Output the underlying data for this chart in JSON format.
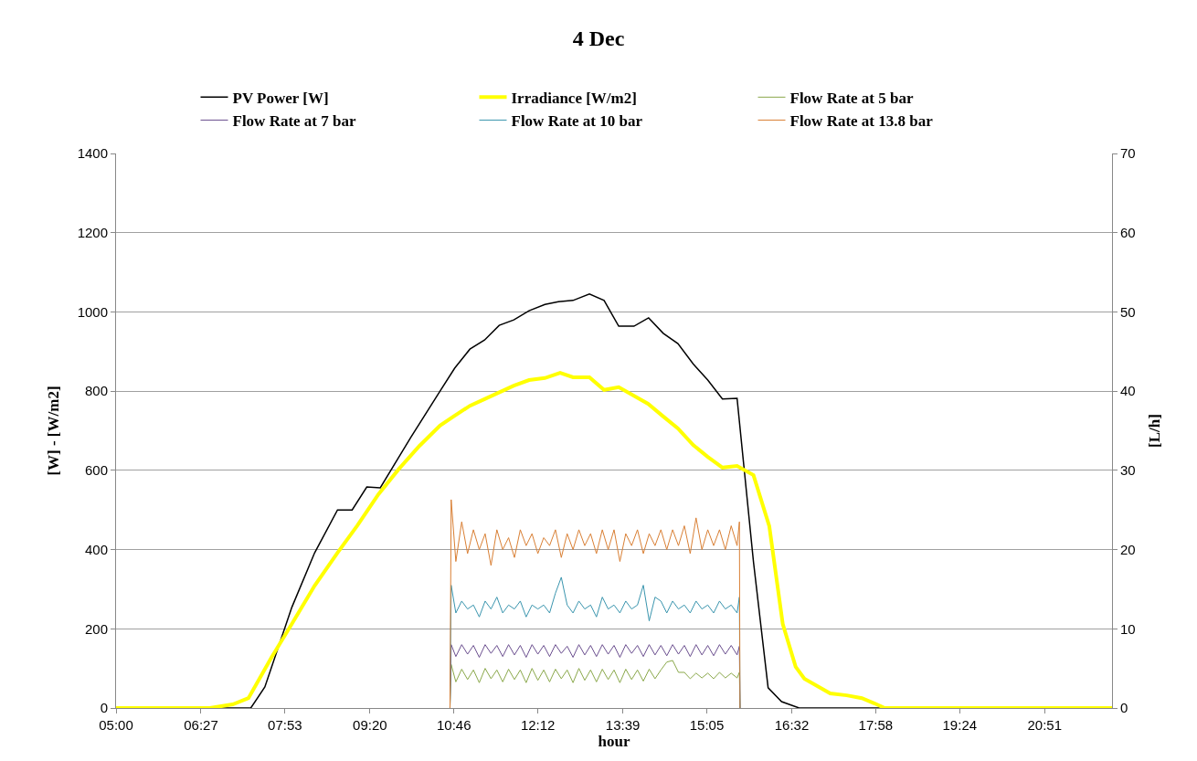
{
  "chart_data": {
    "type": "line",
    "title": "4 Dec",
    "xlabel": "hour",
    "ylabel": "[W] - [W/m2]",
    "y2label": "[L/h]",
    "xlim": [
      5,
      22
    ],
    "xticks": [
      {
        "value": 5,
        "label": "05:00"
      },
      {
        "value": 6.45,
        "label": "06:27"
      },
      {
        "value": 7.8833,
        "label": "07:53"
      },
      {
        "value": 9.3333,
        "label": "09:20"
      },
      {
        "value": 10.7667,
        "label": "10:46"
      },
      {
        "value": 12.2,
        "label": "12:12"
      },
      {
        "value": 13.65,
        "label": "13:39"
      },
      {
        "value": 15.0833,
        "label": "15:05"
      },
      {
        "value": 16.5333,
        "label": "16:32"
      },
      {
        "value": 17.9667,
        "label": "17:58"
      },
      {
        "value": 19.4,
        "label": "19:24"
      },
      {
        "value": 20.85,
        "label": "20:51"
      }
    ],
    "ylim": [
      0,
      1400
    ],
    "yticks": [
      0,
      200,
      400,
      600,
      800,
      1000,
      1200,
      1400
    ],
    "y2lim": [
      0,
      70
    ],
    "y2ticks": [
      0,
      10,
      20,
      30,
      40,
      50,
      60,
      70
    ],
    "grid": "y",
    "legend": "top",
    "marker": "none",
    "line_style": "solid",
    "series": [
      {
        "name": "PV Power [W]",
        "color": "#000000",
        "x": [
          5,
          7.3,
          7.54,
          8.0,
          8.39,
          8.78,
          9.03,
          9.28,
          9.51,
          10.03,
          10.53,
          10.78,
          11.04,
          11.29,
          11.54,
          11.79,
          12.05,
          12.32,
          12.55,
          12.8,
          13.08,
          13.33,
          13.58,
          13.84,
          14.09,
          14.34,
          14.59,
          14.85,
          15.1,
          15.35,
          15.6,
          15.88,
          16.13,
          16.36,
          16.66,
          22
        ],
        "values": [
          0,
          0,
          53,
          254,
          392,
          500,
          500,
          558,
          556,
          683,
          800,
          858,
          906,
          929,
          966,
          980,
          1003,
          1019,
          1026,
          1029,
          1045,
          1029,
          964,
          964,
          985,
          946,
          920,
          869,
          828,
          780,
          782,
          369,
          51,
          16,
          0,
          0
        ]
      },
      {
        "name": "Irradiance [W/m2]",
        "color": "#ffff00",
        "x": [
          5,
          6.6,
          6.99,
          7.26,
          7.65,
          8.0,
          8.39,
          8.78,
          9.12,
          9.48,
          9.83,
          10.18,
          10.53,
          10.76,
          11.04,
          11.29,
          11.79,
          12.05,
          12.32,
          12.58,
          12.8,
          13.08,
          13.33,
          13.58,
          14.08,
          14.34,
          14.59,
          14.85,
          15.1,
          15.35,
          15.6,
          15.88,
          16.15,
          16.38,
          16.6,
          16.75,
          17.19,
          17.47,
          17.73,
          17.94,
          18.12,
          22
        ],
        "values": [
          0,
          0,
          9,
          25,
          127,
          212,
          309,
          392,
          461,
          540,
          604,
          662,
          713,
          736,
          763,
          780,
          814,
          828,
          833,
          846,
          835,
          835,
          803,
          810,
          768,
          736,
          706,
          664,
          634,
          607,
          611,
          588,
          459,
          212,
          104,
          74,
          37,
          32,
          25,
          12,
          0,
          0
        ]
      },
      {
        "name": "Flow Rate at 5 bar",
        "color": "#8aa84a",
        "axis": "y2",
        "x": [
          10.7,
          10.72,
          10.8,
          10.9,
          11.0,
          11.1,
          11.2,
          11.3,
          11.4,
          11.5,
          11.6,
          11.7,
          11.8,
          11.9,
          12.0,
          12.1,
          12.2,
          12.3,
          12.4,
          12.5,
          12.6,
          12.7,
          12.8,
          12.9,
          13.0,
          13.1,
          13.2,
          13.3,
          13.4,
          13.5,
          13.6,
          13.7,
          13.8,
          13.9,
          14.0,
          14.1,
          14.2,
          14.3,
          14.4,
          14.5,
          14.6,
          14.7,
          14.8,
          14.9,
          15.0,
          15.1,
          15.2,
          15.3,
          15.4,
          15.5,
          15.6,
          15.64,
          15.65
        ],
        "values": [
          0,
          5.5,
          3.3,
          4.9,
          3.6,
          4.8,
          3.2,
          5.0,
          3.7,
          4.8,
          3.3,
          4.9,
          3.6,
          4.8,
          3.2,
          5.0,
          3.5,
          4.8,
          3.3,
          4.9,
          3.7,
          4.8,
          3.2,
          5.0,
          3.5,
          4.8,
          3.3,
          4.9,
          3.6,
          4.8,
          3.2,
          4.9,
          3.6,
          4.8,
          3.4,
          4.9,
          3.7,
          4.8,
          5.8,
          6.0,
          4.5,
          4.5,
          3.7,
          4.4,
          3.8,
          4.4,
          3.7,
          4.5,
          3.8,
          4.4,
          3.8,
          4.5,
          0
        ]
      },
      {
        "name": "Flow Rate at 7 bar",
        "color": "#6b4f8f",
        "axis": "y2",
        "x": [
          10.7,
          10.72,
          10.8,
          10.9,
          11.0,
          11.1,
          11.2,
          11.3,
          11.4,
          11.5,
          11.6,
          11.7,
          11.8,
          11.9,
          12.0,
          12.1,
          12.2,
          12.3,
          12.4,
          12.5,
          12.6,
          12.7,
          12.8,
          12.9,
          13.0,
          13.1,
          13.2,
          13.3,
          13.4,
          13.5,
          13.6,
          13.7,
          13.8,
          13.9,
          14.0,
          14.1,
          14.2,
          14.3,
          14.4,
          14.5,
          14.6,
          14.7,
          14.8,
          14.9,
          15.0,
          15.1,
          15.2,
          15.3,
          15.4,
          15.5,
          15.6,
          15.64,
          15.65
        ],
        "values": [
          0,
          8.0,
          6.5,
          8.0,
          6.8,
          7.9,
          6.4,
          8.0,
          6.9,
          7.9,
          6.5,
          8.0,
          6.7,
          7.9,
          6.4,
          8.0,
          6.8,
          7.9,
          6.5,
          8.0,
          6.9,
          7.8,
          6.4,
          8.0,
          6.7,
          7.9,
          6.5,
          8.0,
          6.8,
          7.9,
          6.4,
          8.0,
          6.9,
          7.9,
          6.5,
          8.0,
          6.7,
          7.9,
          6.6,
          8.0,
          6.8,
          7.9,
          6.5,
          8.0,
          6.7,
          7.9,
          6.6,
          8.0,
          6.8,
          7.9,
          6.7,
          7.8,
          0
        ]
      },
      {
        "name": "Flow Rate at 10 bar",
        "color": "#3a95ae",
        "axis": "y2",
        "x": [
          10.7,
          10.72,
          10.8,
          10.9,
          11.0,
          11.1,
          11.2,
          11.3,
          11.4,
          11.5,
          11.6,
          11.7,
          11.8,
          11.9,
          12.0,
          12.1,
          12.2,
          12.3,
          12.4,
          12.5,
          12.6,
          12.7,
          12.8,
          12.9,
          13.0,
          13.1,
          13.2,
          13.3,
          13.4,
          13.5,
          13.6,
          13.7,
          13.8,
          13.9,
          14.0,
          14.1,
          14.2,
          14.3,
          14.4,
          14.5,
          14.6,
          14.7,
          14.8,
          14.9,
          15.0,
          15.1,
          15.2,
          15.3,
          15.4,
          15.5,
          15.6,
          15.64,
          15.65
        ],
        "values": [
          0,
          15.5,
          12.0,
          13.5,
          12.5,
          13.0,
          11.5,
          13.5,
          12.5,
          14.0,
          12.0,
          13.0,
          12.5,
          13.5,
          11.5,
          13.0,
          12.5,
          13.0,
          12.0,
          14.5,
          16.5,
          13.0,
          12.0,
          13.5,
          12.5,
          13.0,
          11.5,
          14.0,
          12.5,
          13.0,
          12.0,
          13.5,
          12.5,
          13.0,
          15.5,
          11.0,
          14.0,
          13.5,
          12.0,
          13.5,
          12.5,
          13.0,
          12.0,
          13.5,
          12.5,
          13.0,
          12.0,
          13.5,
          12.5,
          13.0,
          12.0,
          14.0,
          0
        ]
      },
      {
        "name": "Flow Rate at 13.8 bar",
        "color": "#d97f34",
        "axis": "y2",
        "x": [
          10.7,
          10.72,
          10.8,
          10.9,
          11.0,
          11.1,
          11.2,
          11.3,
          11.4,
          11.5,
          11.6,
          11.7,
          11.8,
          11.9,
          12.0,
          12.1,
          12.2,
          12.3,
          12.4,
          12.5,
          12.6,
          12.7,
          12.8,
          12.9,
          13.0,
          13.1,
          13.2,
          13.3,
          13.4,
          13.5,
          13.6,
          13.7,
          13.8,
          13.9,
          14.0,
          14.1,
          14.2,
          14.3,
          14.4,
          14.5,
          14.6,
          14.7,
          14.8,
          14.9,
          15.0,
          15.1,
          15.2,
          15.3,
          15.4,
          15.5,
          15.6,
          15.64,
          15.65
        ],
        "values": [
          0,
          26.3,
          18.5,
          23.5,
          19.5,
          22.5,
          20.0,
          22.0,
          18.0,
          22.5,
          20.0,
          21.5,
          19.0,
          22.5,
          20.5,
          22.0,
          19.5,
          21.5,
          20.5,
          22.5,
          19.0,
          22.0,
          20.0,
          22.5,
          20.5,
          22.0,
          19.5,
          22.5,
          20.0,
          22.5,
          18.5,
          22.0,
          20.5,
          22.5,
          19.5,
          22.0,
          20.5,
          22.5,
          20.0,
          22.5,
          20.5,
          23.0,
          19.5,
          24.0,
          20.0,
          22.5,
          20.5,
          22.5,
          20.0,
          23.0,
          20.5,
          23.5,
          0
        ]
      }
    ]
  }
}
